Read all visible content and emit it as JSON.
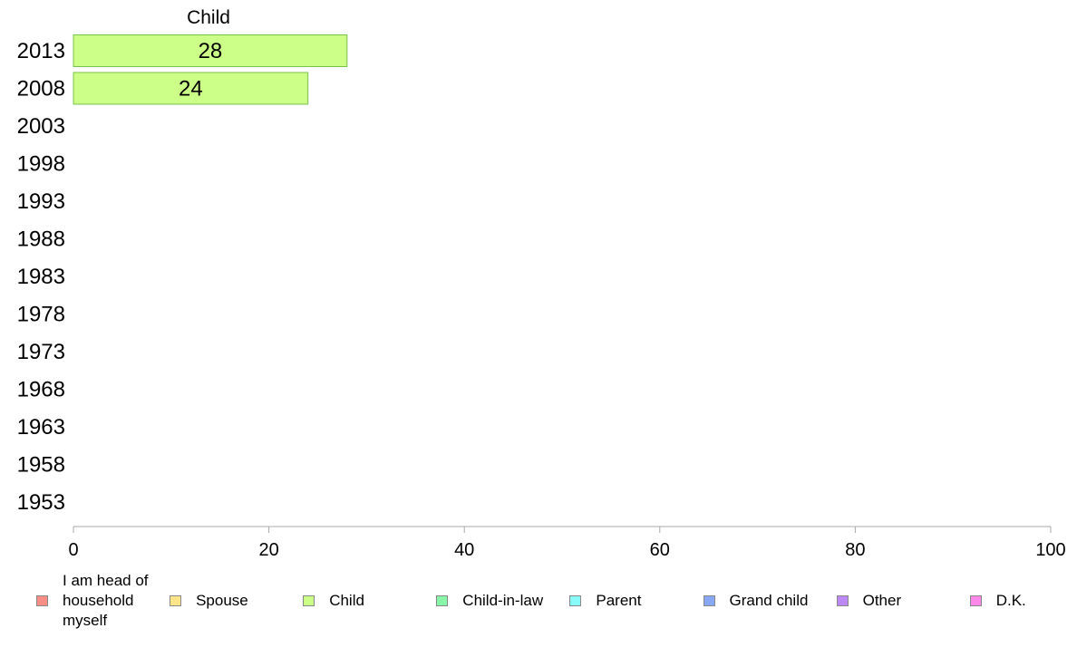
{
  "chart_data": {
    "type": "bar",
    "orientation": "horizontal",
    "stacked": true,
    "categories": [
      "2013",
      "2008",
      "2003",
      "1998",
      "1993",
      "1988",
      "1983",
      "1978",
      "1973",
      "1968",
      "1963",
      "1958",
      "1953"
    ],
    "series": [
      {
        "name": "I am head of household myself",
        "color": "#f88e86",
        "values": [
          null,
          null,
          null,
          null,
          null,
          null,
          null,
          null,
          null,
          null,
          null,
          null,
          null
        ]
      },
      {
        "name": "Spouse",
        "color": "#fde58a",
        "values": [
          null,
          null,
          null,
          null,
          null,
          null,
          null,
          null,
          null,
          null,
          null,
          null,
          null
        ]
      },
      {
        "name": "Child",
        "color": "#ccff88",
        "values": [
          28,
          24,
          null,
          null,
          null,
          null,
          null,
          null,
          null,
          null,
          null,
          null,
          null
        ]
      },
      {
        "name": "Child-in-law",
        "color": "#88f5a8",
        "values": [
          null,
          null,
          null,
          null,
          null,
          null,
          null,
          null,
          null,
          null,
          null,
          null,
          null
        ]
      },
      {
        "name": "Parent",
        "color": "#88fbf8",
        "values": [
          null,
          null,
          null,
          null,
          null,
          null,
          null,
          null,
          null,
          null,
          null,
          null,
          null
        ]
      },
      {
        "name": "Grand child",
        "color": "#88a8f5",
        "values": [
          null,
          null,
          null,
          null,
          null,
          null,
          null,
          null,
          null,
          null,
          null,
          null,
          null
        ]
      },
      {
        "name": "Other",
        "color": "#bb88f5",
        "values": [
          null,
          null,
          null,
          null,
          null,
          null,
          null,
          null,
          null,
          null,
          null,
          null,
          null
        ]
      },
      {
        "name": "D.K.",
        "color": "#fb88e8",
        "values": [
          null,
          null,
          null,
          null,
          null,
          null,
          null,
          null,
          null,
          null,
          null,
          null,
          null
        ]
      }
    ],
    "column_header": "Child",
    "xlim": [
      0,
      100
    ],
    "xticks": [
      0,
      20,
      40,
      60,
      80,
      100
    ],
    "xtick_labels": [
      "0",
      "20",
      "40",
      "60",
      "80",
      "100"
    ],
    "grid": false,
    "legend_position": "bottom"
  },
  "legend": {
    "items": [
      {
        "label": "I am head of\nhousehold\nmyself",
        "color": "#f88e86"
      },
      {
        "label": "Spouse",
        "color": "#fde58a"
      },
      {
        "label": "Child",
        "color": "#ccff88"
      },
      {
        "label": "Child-in-law",
        "color": "#88f5a8"
      },
      {
        "label": "Parent",
        "color": "#88fbf8"
      },
      {
        "label": "Grand child",
        "color": "#88a8f5"
      },
      {
        "label": "Other",
        "color": "#bb88f5"
      },
      {
        "label": "D.K.",
        "color": "#fb88e8"
      }
    ]
  }
}
